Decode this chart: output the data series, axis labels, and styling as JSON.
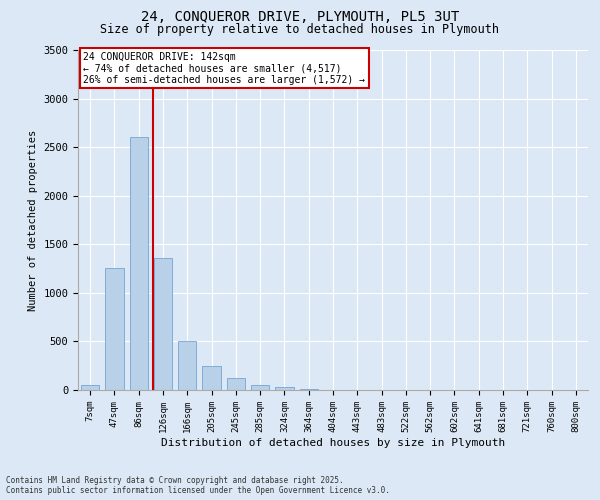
{
  "title_line1": "24, CONQUEROR DRIVE, PLYMOUTH, PL5 3UT",
  "title_line2": "Size of property relative to detached houses in Plymouth",
  "xlabel": "Distribution of detached houses by size in Plymouth",
  "ylabel": "Number of detached properties",
  "bin_labels": [
    "7sqm",
    "47sqm",
    "86sqm",
    "126sqm",
    "166sqm",
    "205sqm",
    "245sqm",
    "285sqm",
    "324sqm",
    "364sqm",
    "404sqm",
    "443sqm",
    "483sqm",
    "522sqm",
    "562sqm",
    "602sqm",
    "641sqm",
    "681sqm",
    "721sqm",
    "760sqm",
    "800sqm"
  ],
  "bar_values": [
    50,
    1260,
    2600,
    1360,
    500,
    250,
    120,
    55,
    30,
    10,
    5,
    0,
    0,
    0,
    0,
    0,
    0,
    0,
    0,
    0,
    0
  ],
  "bar_color": "#b8d0e8",
  "bar_edge_color": "#6699cc",
  "vline_x_index": 3,
  "annotation_title": "24 CONQUEROR DRIVE: 142sqm",
  "annotation_line2": "← 74% of detached houses are smaller (4,517)",
  "annotation_line3": "26% of semi-detached houses are larger (1,572) →",
  "annotation_box_color": "#ffffff",
  "annotation_box_edge": "#cc0000",
  "vline_color": "#cc0000",
  "background_color": "#dce8f5",
  "grid_color": "#ffffff",
  "footer_line1": "Contains HM Land Registry data © Crown copyright and database right 2025.",
  "footer_line2": "Contains public sector information licensed under the Open Government Licence v3.0.",
  "ylim": [
    0,
    3500
  ],
  "yticks": [
    0,
    500,
    1000,
    1500,
    2000,
    2500,
    3000,
    3500
  ]
}
